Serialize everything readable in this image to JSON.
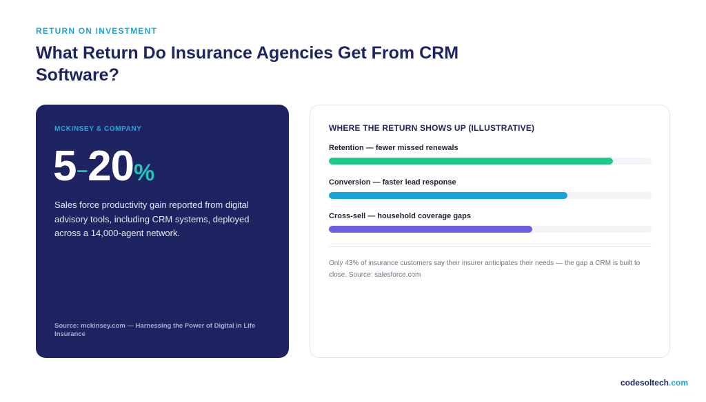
{
  "header": {
    "eyebrow": "RETURN ON INVESTMENT",
    "title": "What Return Do Insurance Agencies Get From CRM Software?"
  },
  "stat_card": {
    "source_label": "MCKINSEY & COMPANY",
    "figure_low": "5",
    "figure_dash": "–",
    "figure_high": "20",
    "figure_unit": "%",
    "description": "Sales force productivity gain reported from digital advisory tools, including CRM systems, deployed across a 14,000-agent network.",
    "footnote": "Source: mckinsey.com — Harnessing the Power of Digital in Life Insurance"
  },
  "bars_card": {
    "heading": "WHERE THE RETURN SHOWS UP (ILLUSTRATIVE)",
    "items": [
      {
        "label": "Retention — fewer missed renewals",
        "fraction": 0.88,
        "color": "#1fc98a"
      },
      {
        "label": "Conversion — faster lead response",
        "fraction": 0.74,
        "color": "#1aa3d9"
      },
      {
        "label": "Cross-sell — household coverage gaps",
        "fraction": 0.63,
        "color": "#6b5ee6"
      }
    ],
    "note": "Only 43% of insurance customers say their insurer anticipates their needs — the gap a CRM is built to close. Source: salesforce.com"
  },
  "brand": {
    "name": "codesoltech",
    "tld": ".com"
  }
}
